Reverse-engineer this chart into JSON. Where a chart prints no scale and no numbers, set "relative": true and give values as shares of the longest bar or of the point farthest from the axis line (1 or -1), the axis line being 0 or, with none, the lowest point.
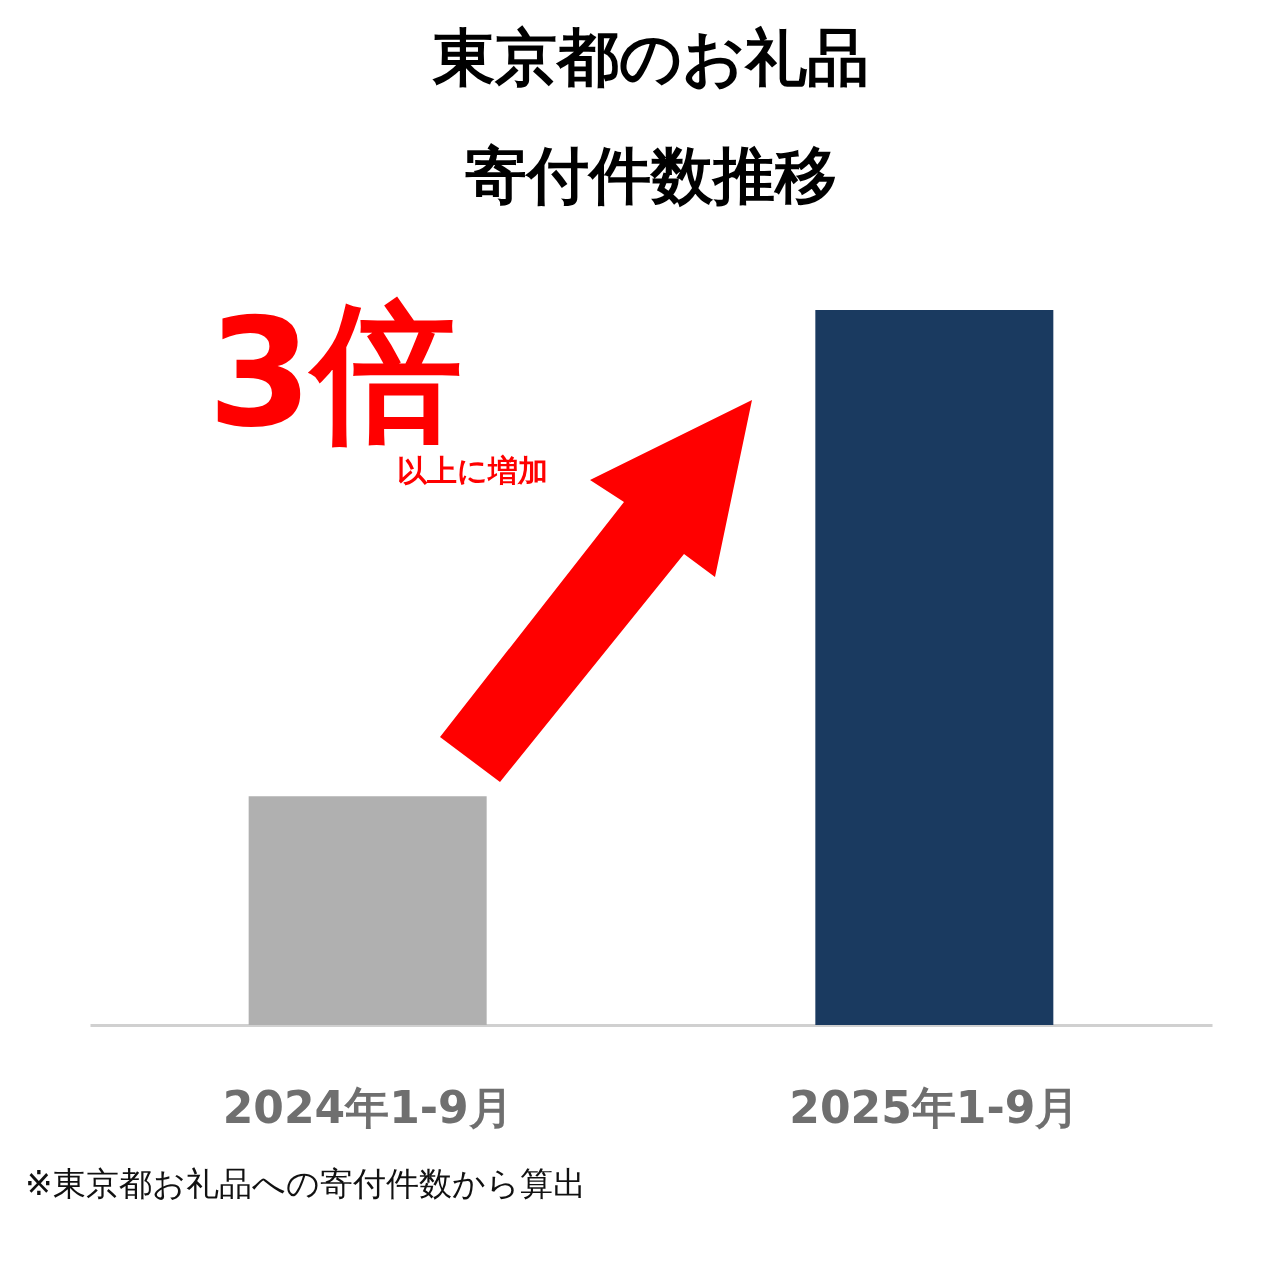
{
  "chart_data": {
    "type": "bar",
    "title": "東京都のお礼品寄付件数推移",
    "categories": [
      "2024年1-9月",
      "2025年1-9月"
    ],
    "values": [
      0.32,
      1
    ],
    "colors": [
      "#b0b0b0",
      "#1a3a60"
    ],
    "relative": true,
    "annotations": [
      "3倍",
      "以上に増加",
      "※東京都お礼品への寄付件数から算出"
    ]
  }
}
